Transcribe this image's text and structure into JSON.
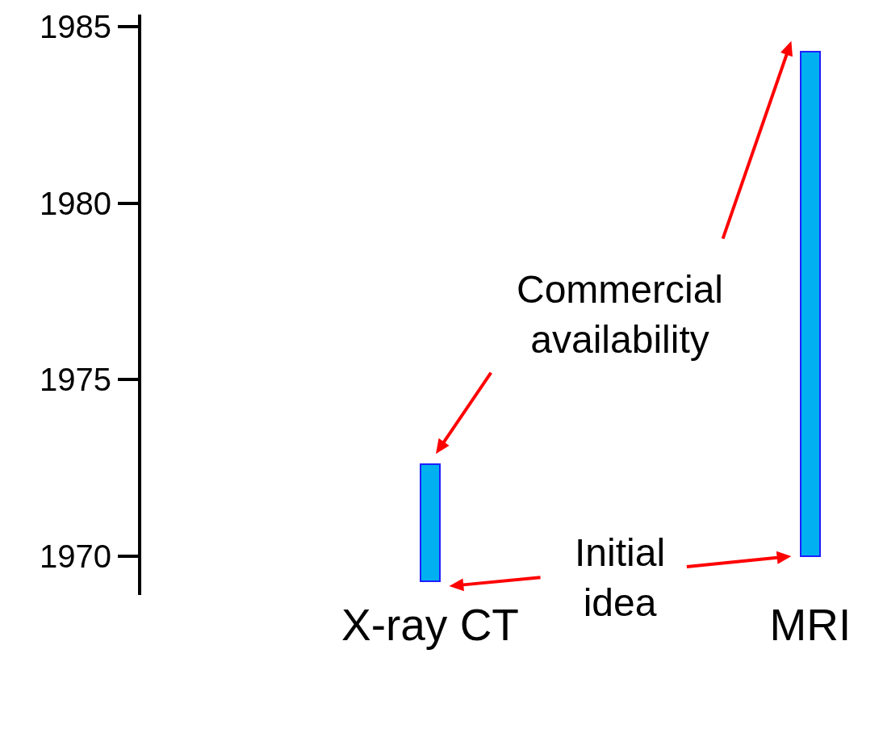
{
  "chart_data": {
    "type": "bar",
    "categories": [
      "X-ray CT",
      "MRI"
    ],
    "base": [
      1969.3,
      1970
    ],
    "values": [
      3.3,
      14.3
    ],
    "color": "#00b0f0",
    "ylim": [
      1968.9,
      1985.35
    ],
    "yticks": [
      1970,
      1975,
      1980,
      1985
    ],
    "annotations": [
      "Commercial availability",
      "Initial idea"
    ]
  }
}
